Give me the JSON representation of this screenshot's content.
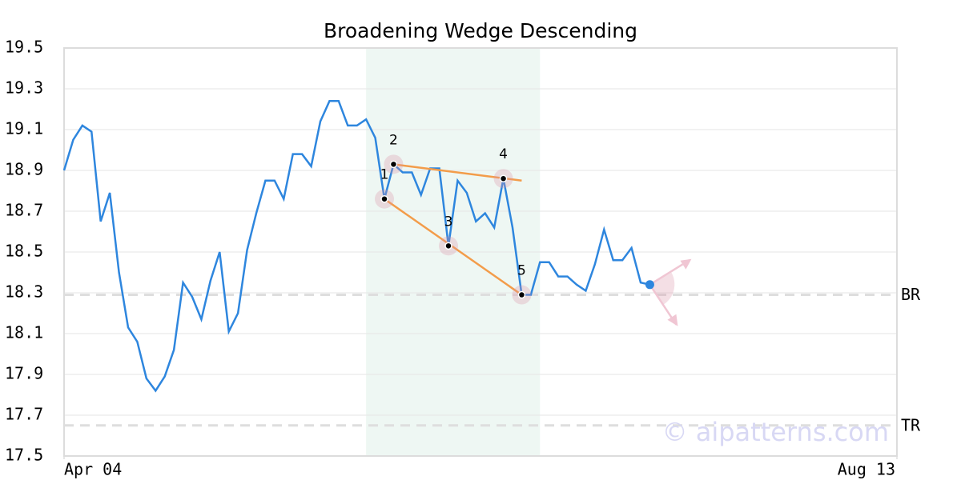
{
  "chart_data": {
    "type": "line",
    "title": "Broadening Wedge Descending",
    "xlim": [
      0,
      91
    ],
    "xticks": [
      {
        "value": 0,
        "label": "Apr 04"
      },
      {
        "value": 91,
        "label": "Aug 13"
      }
    ],
    "ylim": [
      17.5,
      19.5
    ],
    "yticks": [
      17.5,
      17.7,
      17.9,
      18.1,
      18.3,
      18.5,
      18.7,
      18.9,
      19.1,
      19.3,
      19.5
    ],
    "grid": true,
    "color": "#2e86de",
    "values": [
      18.9,
      19.05,
      19.12,
      19.09,
      18.65,
      18.79,
      18.4,
      18.13,
      18.06,
      17.88,
      17.82,
      17.89,
      18.02,
      18.35,
      18.28,
      18.17,
      18.36,
      18.5,
      18.11,
      18.2,
      18.51,
      18.69,
      18.85,
      18.85,
      18.76,
      18.98,
      18.98,
      18.92,
      19.14,
      19.24,
      19.24,
      19.12,
      19.12,
      19.15,
      19.06,
      18.76,
      18.93,
      18.89,
      18.89,
      18.78,
      18.91,
      18.91,
      18.53,
      18.85,
      18.79,
      18.65,
      18.69,
      18.62,
      18.86,
      18.62,
      18.29,
      18.29,
      18.45,
      18.45,
      18.38,
      18.38,
      18.34,
      18.31,
      18.44,
      18.61,
      18.46,
      18.46,
      18.52,
      18.35,
      18.34
    ],
    "highlight_range": [
      33,
      52
    ],
    "pattern_points": [
      {
        "label": "1",
        "x": 35,
        "y": 18.76
      },
      {
        "label": "2",
        "x": 36,
        "y": 18.93
      },
      {
        "label": "3",
        "x": 42,
        "y": 18.53
      },
      {
        "label": "4",
        "x": 48,
        "y": 18.86
      },
      {
        "label": "5",
        "x": 50,
        "y": 18.29
      }
    ],
    "trendlines": [
      {
        "x": [
          36,
          50
        ],
        "y": [
          18.93,
          18.85
        ]
      },
      {
        "x": [
          35,
          50
        ],
        "y": [
          18.76,
          18.29
        ]
      }
    ],
    "trendline_color": "#f39c4a",
    "levels": [
      {
        "label": "BR",
        "value": 18.29
      },
      {
        "label": "TR",
        "value": 17.65
      }
    ],
    "watermark": "© aipatterns.com"
  }
}
